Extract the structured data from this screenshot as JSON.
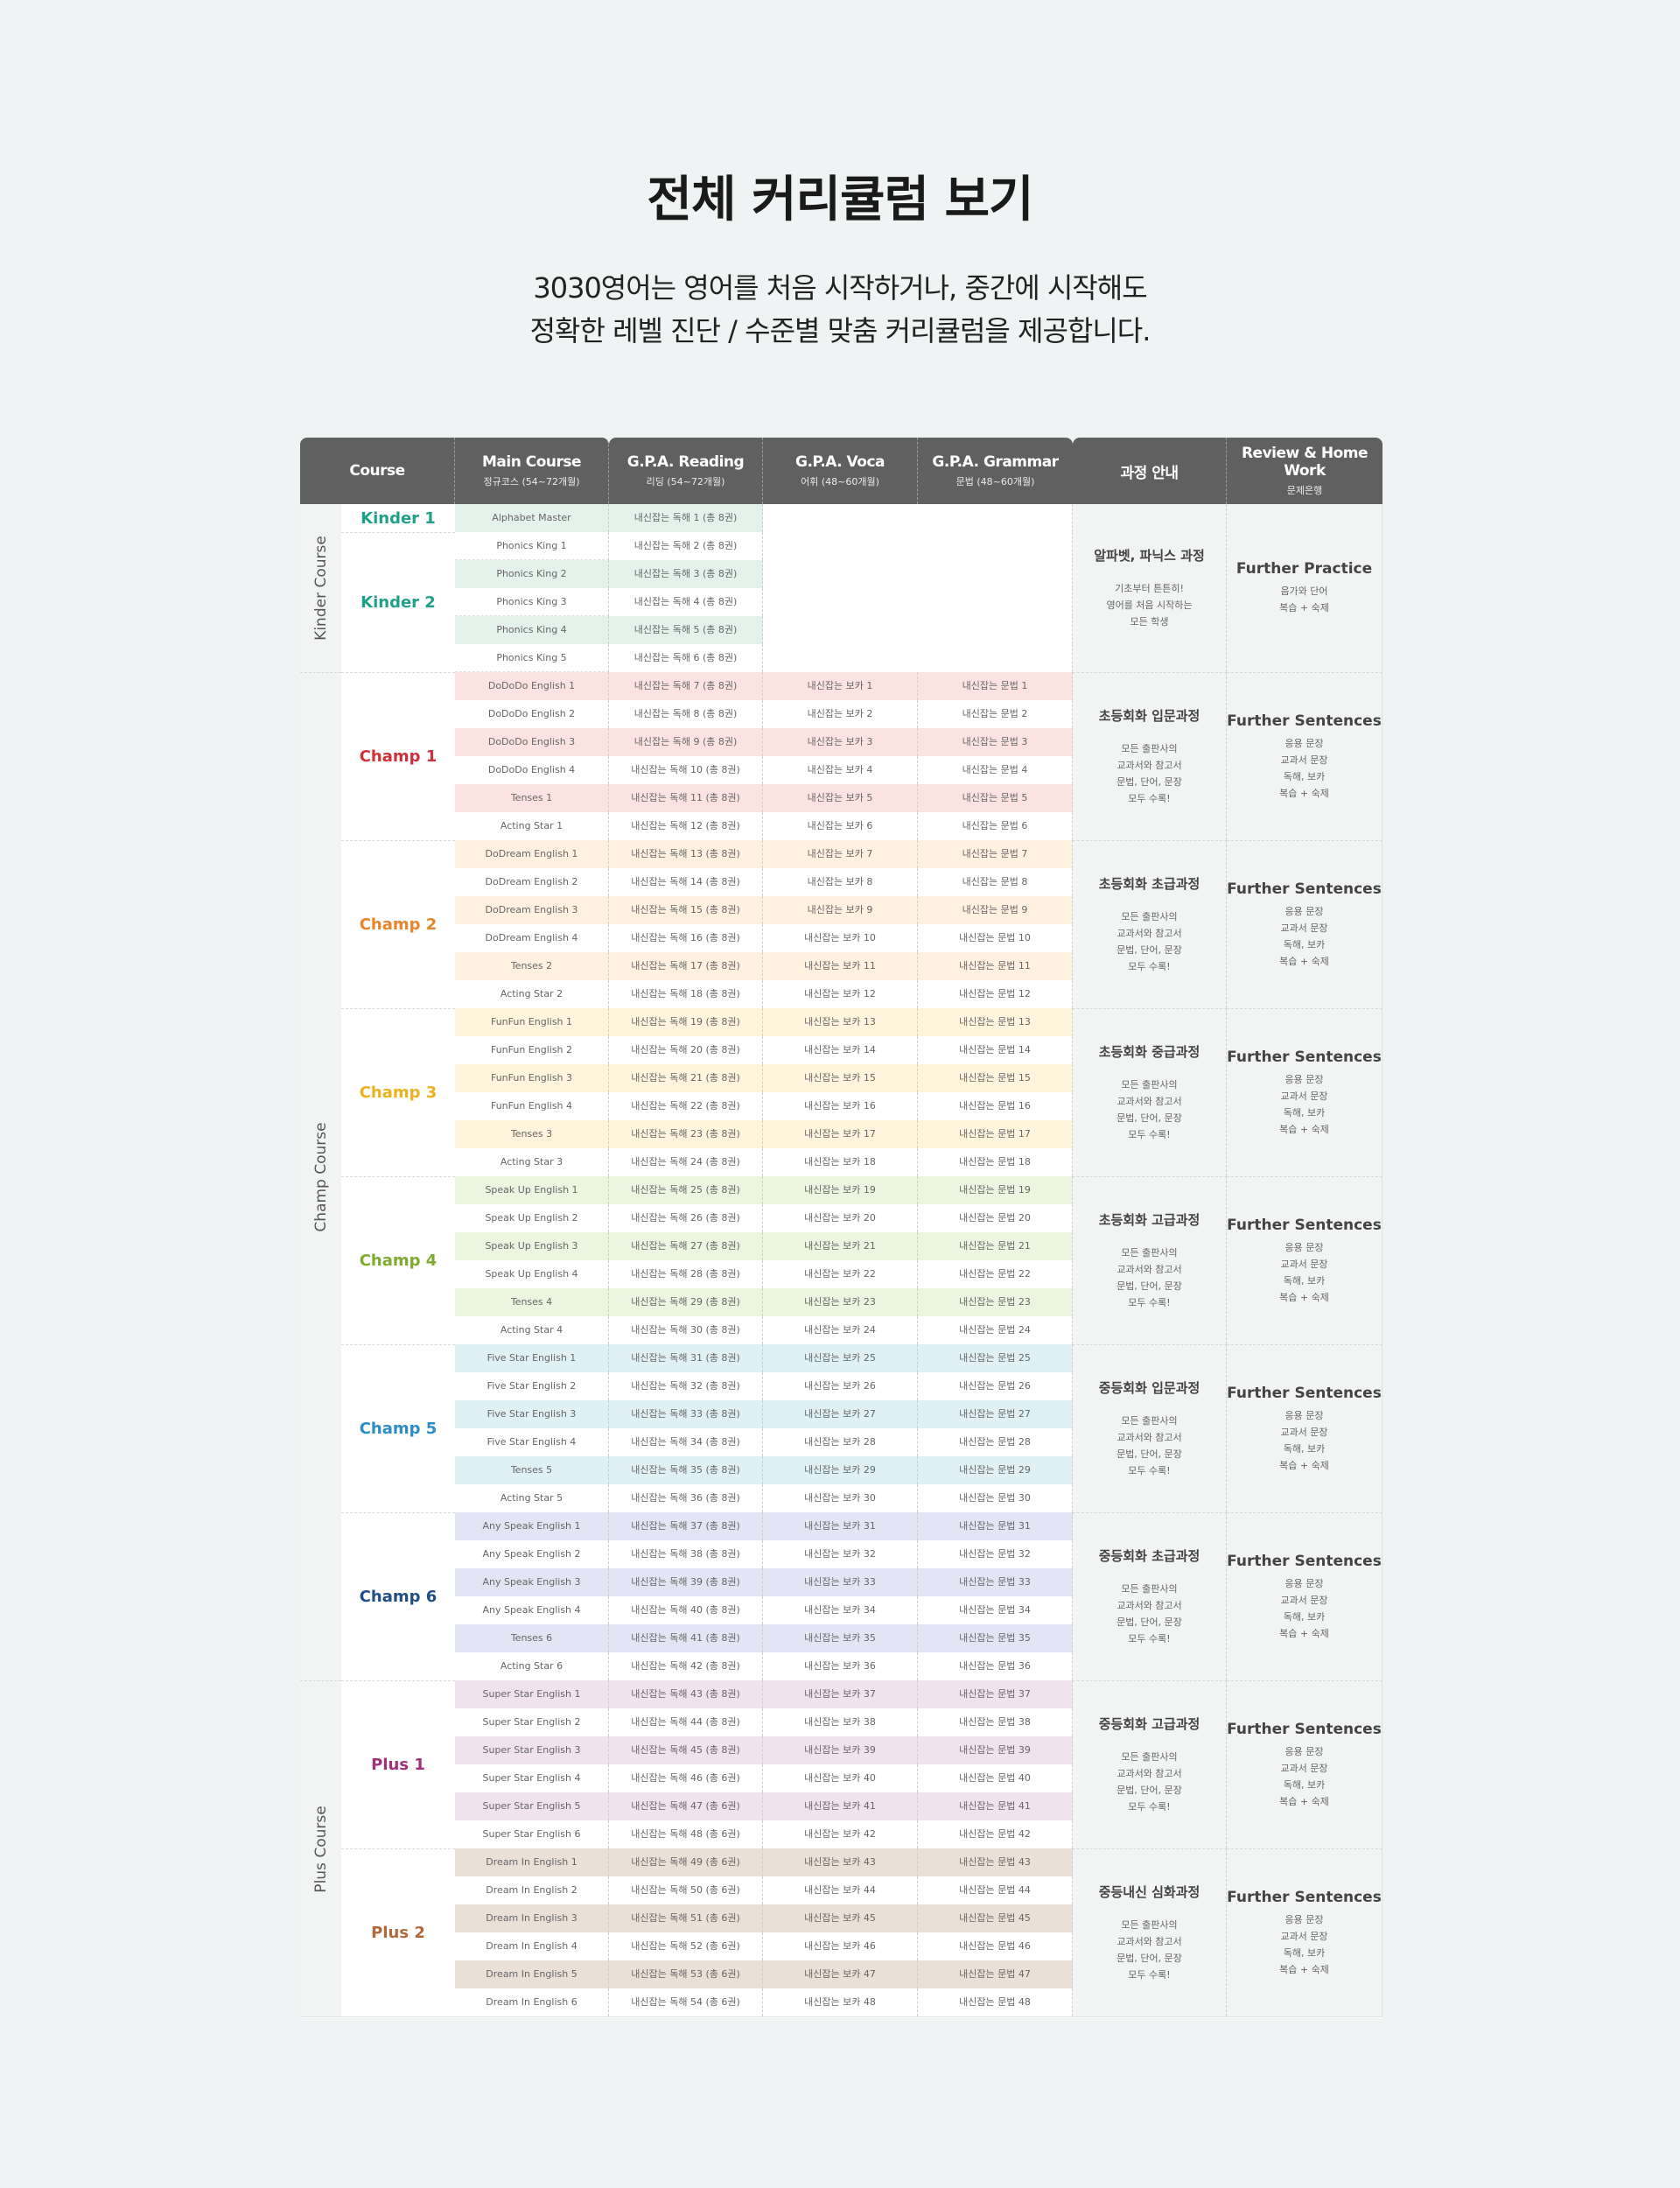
{
  "title": "전체 커리큘럼 보기",
  "description": [
    "3030영어는 영어를 처음 시작하거나, 중간에 시작해도",
    "정확한 레벨 진단 / 수준별 맞춤 커리큘럼을 제공합니다."
  ],
  "headers": {
    "course": "Course",
    "main": {
      "title": "Main Course",
      "sub": "정규코스 (54~72개월)"
    },
    "reading": {
      "title": "G.P.A. Reading",
      "sub": "리딩 (54~72개월)"
    },
    "voca": {
      "title": "G.P.A. Voca",
      "sub": "어휘 (48~60개월)"
    },
    "grammar": {
      "title": "G.P.A. Grammar",
      "sub": "문법 (48~60개월)"
    },
    "info": {
      "title": "과정 안내"
    },
    "review": {
      "title": "Review & Home Work",
      "sub": "문제은행"
    }
  },
  "course_groups": [
    {
      "label": "Kinder Course"
    },
    {
      "label": "Champ Course"
    },
    {
      "label": "Plus Course"
    }
  ],
  "levels": [
    {
      "name": "Kinder 1",
      "color": "#20a08a"
    },
    {
      "name": "Kinder 2",
      "color": "#20a08a"
    },
    {
      "name": "Champ 1",
      "color": "#d0303a"
    },
    {
      "name": "Champ 2",
      "color": "#e8842c"
    },
    {
      "name": "Champ 3",
      "color": "#ecb21e"
    },
    {
      "name": "Champ 4",
      "color": "#7faa2e"
    },
    {
      "name": "Champ 5",
      "color": "#2c8cc6"
    },
    {
      "name": "Champ 6",
      "color": "#1f4f86"
    },
    {
      "name": "Plus 1",
      "color": "#a0307a"
    },
    {
      "name": "Plus 2",
      "color": "#b06a3a"
    }
  ],
  "colors": {
    "kinder": "#e3f3ec",
    "champ1": "#fde2e2",
    "champ2": "#fff1df",
    "champ3": "#fff5dc",
    "champ4": "#ecf5df",
    "champ5": "#e0f1f6",
    "champ6": "#e3e5f4",
    "plus1": "#f1e2ef",
    "plus2": "#ebe0d6"
  },
  "rows": [
    [
      "Alphabet Master",
      "내신잡는 독해 1 (총 8권)",
      "",
      ""
    ],
    [
      "Phonics King 1",
      "내신잡는 독해 2 (총 8권)",
      "",
      ""
    ],
    [
      "Phonics King 2",
      "내신잡는 독해 3 (총 8권)",
      "",
      ""
    ],
    [
      "Phonics King 3",
      "내신잡는 독해 4 (총 8권)",
      "",
      ""
    ],
    [
      "Phonics King 4",
      "내신잡는 독해 5 (총 8권)",
      "",
      ""
    ],
    [
      "Phonics King 5",
      "내신잡는 독해 6 (총 8권)",
      "",
      ""
    ],
    [
      "DoDoDo English 1",
      "내신잡는 독해 7 (총 8권)",
      "내신잡는 보카 1",
      "내신잡는 문법 1"
    ],
    [
      "DoDoDo English 2",
      "내신잡는 독해 8 (총 8권)",
      "내신잡는 보카 2",
      "내신잡는 문법 2"
    ],
    [
      "DoDoDo English 3",
      "내신잡는 독해 9 (총 8권)",
      "내신잡는 보카 3",
      "내신잡는 문법 3"
    ],
    [
      "DoDoDo English 4",
      "내신잡는 독해 10 (총 8권)",
      "내신잡는 보카 4",
      "내신잡는 문법 4"
    ],
    [
      "Tenses 1",
      "내신잡는 독해 11 (총 8권)",
      "내신잡는 보카 5",
      "내신잡는 문법 5"
    ],
    [
      "Acting Star 1",
      "내신잡는 독해 12 (총 8권)",
      "내신잡는 보카 6",
      "내신잡는 문법 6"
    ],
    [
      "DoDream English 1",
      "내신잡는 독해 13 (총 8권)",
      "내신잡는 보카 7",
      "내신잡는 문법 7"
    ],
    [
      "DoDream English 2",
      "내신잡는 독해 14 (총 8권)",
      "내신잡는 보카 8",
      "내신잡는 문법 8"
    ],
    [
      "DoDream English 3",
      "내신잡는 독해 15 (총 8권)",
      "내신잡는 보카 9",
      "내신잡는 문법 9"
    ],
    [
      "DoDream English 4",
      "내신잡는 독해 16 (총 8권)",
      "내신잡는 보카 10",
      "내신잡는 문법 10"
    ],
    [
      "Tenses 2",
      "내신잡는 독해 17 (총 8권)",
      "내신잡는 보카 11",
      "내신잡는 문법 11"
    ],
    [
      "Acting Star 2",
      "내신잡는 독해 18 (총 8권)",
      "내신잡는 보카 12",
      "내신잡는 문법 12"
    ],
    [
      "FunFun English 1",
      "내신잡는 독해 19 (총 8권)",
      "내신잡는 보카 13",
      "내신잡는 문법 13"
    ],
    [
      "FunFun English 2",
      "내신잡는 독해 20 (총 8권)",
      "내신잡는 보카 14",
      "내신잡는 문법 14"
    ],
    [
      "FunFun English 3",
      "내신잡는 독해 21 (총 8권)",
      "내신잡는 보카 15",
      "내신잡는 문법 15"
    ],
    [
      "FunFun English 4",
      "내신잡는 독해 22 (총 8권)",
      "내신잡는 보카 16",
      "내신잡는 문법 16"
    ],
    [
      "Tenses 3",
      "내신잡는 독해 23 (총 8권)",
      "내신잡는 보카 17",
      "내신잡는 문법 17"
    ],
    [
      "Acting Star 3",
      "내신잡는 독해 24 (총 8권)",
      "내신잡는 보카 18",
      "내신잡는 문법 18"
    ],
    [
      "Speak Up English 1",
      "내신잡는 독해 25 (총 8권)",
      "내신잡는 보카 19",
      "내신잡는 문법 19"
    ],
    [
      "Speak Up English 2",
      "내신잡는 독해 26 (총 8권)",
      "내신잡는 보카 20",
      "내신잡는 문법 20"
    ],
    [
      "Speak Up English 3",
      "내신잡는 독해 27 (총 8권)",
      "내신잡는 보카 21",
      "내신잡는 문법 21"
    ],
    [
      "Speak Up English 4",
      "내신잡는 독해 28 (총 8권)",
      "내신잡는 보카 22",
      "내신잡는 문법 22"
    ],
    [
      "Tenses 4",
      "내신잡는 독해 29 (총 8권)",
      "내신잡는 보카 23",
      "내신잡는 문법 23"
    ],
    [
      "Acting Star 4",
      "내신잡는 독해 30 (총 8권)",
      "내신잡는 보카 24",
      "내신잡는 문법 24"
    ],
    [
      "Five Star English 1",
      "내신잡는 독해 31 (총 8권)",
      "내신잡는 보카 25",
      "내신잡는 문법 25"
    ],
    [
      "Five Star English 2",
      "내신잡는 독해 32 (총 8권)",
      "내신잡는 보카 26",
      "내신잡는 문법 26"
    ],
    [
      "Five Star English 3",
      "내신잡는 독해 33 (총 8권)",
      "내신잡는 보카 27",
      "내신잡는 문법 27"
    ],
    [
      "Five Star English 4",
      "내신잡는 독해 34 (총 8권)",
      "내신잡는 보카 28",
      "내신잡는 문법 28"
    ],
    [
      "Tenses 5",
      "내신잡는 독해 35 (총 8권)",
      "내신잡는 보카 29",
      "내신잡는 문법 29"
    ],
    [
      "Acting Star 5",
      "내신잡는 독해 36 (총 8권)",
      "내신잡는 보카 30",
      "내신잡는 문법 30"
    ],
    [
      "Any Speak English 1",
      "내신잡는 독해 37 (총 8권)",
      "내신잡는 보카 31",
      "내신잡는 문법 31"
    ],
    [
      "Any Speak English 2",
      "내신잡는 독해 38 (총 8권)",
      "내신잡는 보카 32",
      "내신잡는 문법 32"
    ],
    [
      "Any Speak English 3",
      "내신잡는 독해 39 (총 8권)",
      "내신잡는 보카 33",
      "내신잡는 문법 33"
    ],
    [
      "Any Speak English 4",
      "내신잡는 독해 40 (총 8권)",
      "내신잡는 보카 34",
      "내신잡는 문법 34"
    ],
    [
      "Tenses 6",
      "내신잡는 독해 41 (총 8권)",
      "내신잡는 보카 35",
      "내신잡는 문법 35"
    ],
    [
      "Acting Star 6",
      "내신잡는 독해 42 (총 8권)",
      "내신잡는 보카 36",
      "내신잡는 문법 36"
    ],
    [
      "Super Star English 1",
      "내신잡는 독해 43 (총 8권)",
      "내신잡는 보카 37",
      "내신잡는 문법 37"
    ],
    [
      "Super Star English 2",
      "내신잡는 독해 44 (총 8권)",
      "내신잡는 보카 38",
      "내신잡는 문법 38"
    ],
    [
      "Super Star English 3",
      "내신잡는 독해 45 (총 8권)",
      "내신잡는 보카 39",
      "내신잡는 문법 39"
    ],
    [
      "Super Star English 4",
      "내신잡는 독해 46 (총 6권)",
      "내신잡는 보카 40",
      "내신잡는 문법 40"
    ],
    [
      "Super Star English 5",
      "내신잡는 독해 47 (총 6권)",
      "내신잡는 보카 41",
      "내신잡는 문법 41"
    ],
    [
      "Super Star English 6",
      "내신잡는 독해 48 (총 6권)",
      "내신잡는 보카 42",
      "내신잡는 문법 42"
    ],
    [
      "Dream In English 1",
      "내신잡는 독해 49 (총 6권)",
      "내신잡는 보카 43",
      "내신잡는 문법 43"
    ],
    [
      "Dream In English 2",
      "내신잡는 독해 50 (총 6권)",
      "내신잡는 보카 44",
      "내신잡는 문법 44"
    ],
    [
      "Dream In English 3",
      "내신잡는 독해 51 (총 6권)",
      "내신잡는 보카 45",
      "내신잡는 문법 45"
    ],
    [
      "Dream In English 4",
      "내신잡는 독해 52 (총 6권)",
      "내신잡는 보카 46",
      "내신잡는 문법 46"
    ],
    [
      "Dream In English 5",
      "내신잡는 독해 53 (총 6권)",
      "내신잡는 보카 47",
      "내신잡는 문법 47"
    ],
    [
      "Dream In English 6",
      "내신잡는 독해 54 (총 6권)",
      "내신잡는 보카 48",
      "내신잡는 문법 48"
    ]
  ],
  "info_blocks": [
    {
      "title": "알파벳, 파닉스 과정",
      "desc": "기초부터 튼튼히!\n영어를 처음 시작하는\n모든 학생"
    },
    {
      "title": "초등회화 입문과정",
      "desc": "모든 출판사의\n교과서와 참고서\n문법, 단어, 문장\n모두 수록!"
    },
    {
      "title": "초등회화 초급과정",
      "desc": "모든 출판사의\n교과서와 참고서\n문법, 단어, 문장\n모두 수록!"
    },
    {
      "title": "초등회화 중급과정",
      "desc": "모든 출판사의\n교과서와 참고서\n문법, 단어, 문장\n모두 수록!"
    },
    {
      "title": "초등회화 고급과정",
      "desc": "모든 출판사의\n교과서와 참고서\n문법, 단어, 문장\n모두 수록!"
    },
    {
      "title": "중등회화 입문과정",
      "desc": "모든 출판사의\n교과서와 참고서\n문법, 단어, 문장\n모두 수록!"
    },
    {
      "title": "중등회화 초급과정",
      "desc": "모든 출판사의\n교과서와 참고서\n문법, 단어, 문장\n모두 수록!"
    },
    {
      "title": "중등회화 고급과정",
      "desc": "모든 출판사의\n교과서와 참고서\n문법, 단어, 문장\n모두 수록!"
    },
    {
      "title": "중등내신 심화과정",
      "desc": "모든 출판사의\n교과서와 참고서\n문법, 단어, 문장\n모두 수록!"
    }
  ],
  "review_blocks": [
    {
      "title": "Further Practice",
      "desc": "음가와 단어\n복습 + 숙제"
    },
    {
      "title": "Further Sentences",
      "desc": "응용 문장\n교과서 문장\n독해, 보카\n복습 + 숙제"
    },
    {
      "title": "Further Sentences",
      "desc": "응용 문장\n교과서 문장\n독해, 보카\n복습 + 숙제"
    },
    {
      "title": "Further Sentences",
      "desc": "응용 문장\n교과서 문장\n독해, 보카\n복습 + 숙제"
    },
    {
      "title": "Further Sentences",
      "desc": "응용 문장\n교과서 문장\n독해, 보카\n복습 + 숙제"
    },
    {
      "title": "Further Sentences",
      "desc": "응용 문장\n교과서 문장\n독해, 보카\n복습 + 숙제"
    },
    {
      "title": "Further Sentences",
      "desc": "응용 문장\n교과서 문장\n독해, 보카\n복습 + 숙제"
    },
    {
      "title": "Further Sentences",
      "desc": "응용 문장\n교과서 문장\n독해, 보카\n복습 + 숙제"
    },
    {
      "title": "Further Sentences",
      "desc": "응용 문장\n교과서 문장\n독해, 보카\n복습 + 숙제"
    }
  ]
}
